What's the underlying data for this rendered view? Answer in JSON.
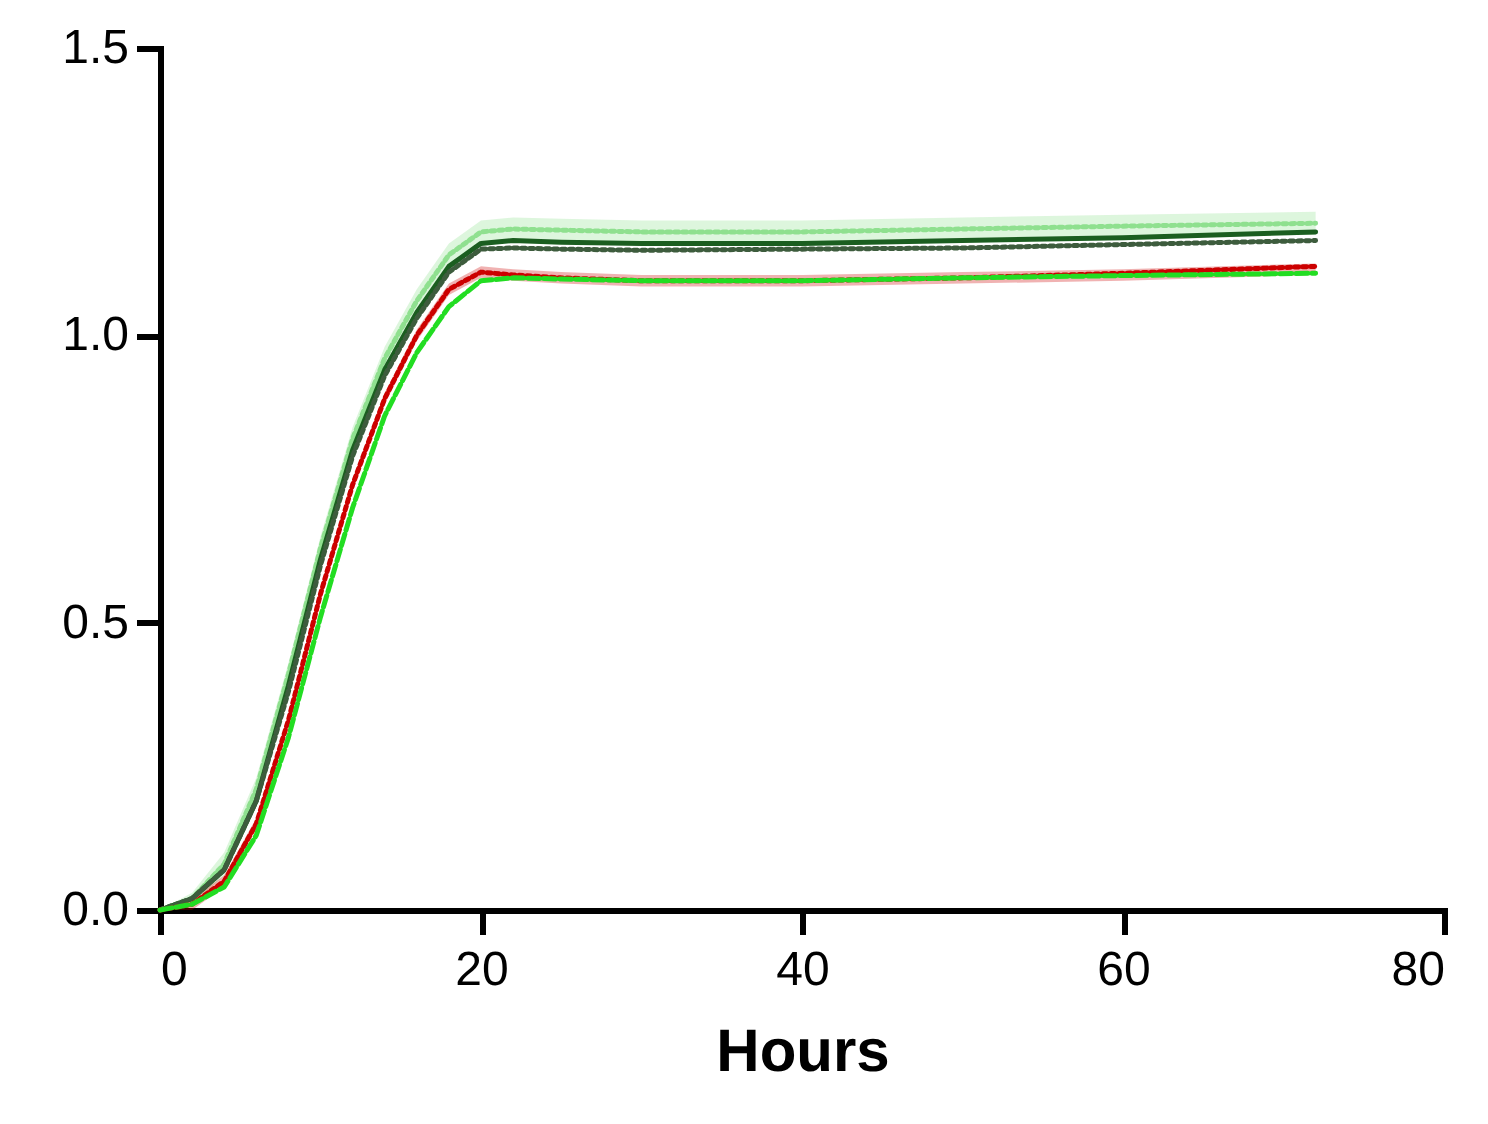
{
  "chart_data": {
    "type": "line",
    "xlabel": "Hours",
    "x": [
      0,
      2,
      4,
      6,
      8,
      10,
      12,
      14,
      16,
      18,
      20,
      22,
      25,
      30,
      40,
      50,
      60,
      72
    ],
    "xlim": [
      0,
      80
    ],
    "xticks": [
      0,
      20,
      40,
      60,
      80
    ],
    "ylim": [
      0,
      1.5
    ],
    "yticks": [
      {
        "value": 0,
        "label": "0.0"
      },
      0.5,
      {
        "value": 1,
        "label": "1.0"
      },
      1.5
    ],
    "grid": false,
    "series": [
      {
        "color": "#8fe08f",
        "line_style": "dotted",
        "values": [
          0,
          0.02,
          0.08,
          0.21,
          0.41,
          0.63,
          0.82,
          0.96,
          1.06,
          1.14,
          1.18,
          1.185,
          1.183,
          1.18,
          1.18,
          1.185,
          1.19,
          1.195
        ],
        "lower": [
          0,
          0.01,
          0.06,
          0.19,
          0.39,
          0.61,
          0.8,
          0.94,
          1.04,
          1.12,
          1.16,
          1.165,
          1.163,
          1.16,
          1.16,
          1.165,
          1.17,
          1.175
        ],
        "upper": [
          0,
          0.03,
          0.1,
          0.23,
          0.43,
          0.65,
          0.84,
          0.98,
          1.08,
          1.16,
          1.2,
          1.205,
          1.203,
          1.2,
          1.2,
          1.205,
          1.21,
          1.215
        ]
      },
      {
        "color": "#1b5e20",
        "line_style": "solid",
        "values": [
          0,
          0.02,
          0.07,
          0.19,
          0.39,
          0.61,
          0.8,
          0.94,
          1.04,
          1.12,
          1.16,
          1.165,
          1.162,
          1.16,
          1.16,
          1.165,
          1.17,
          1.18
        ]
      },
      {
        "color": "#3d5c3d",
        "line_style": "dotted",
        "values": [
          0,
          0.02,
          0.07,
          0.19,
          0.38,
          0.6,
          0.79,
          0.93,
          1.03,
          1.11,
          1.15,
          1.152,
          1.15,
          1.148,
          1.15,
          1.152,
          1.158,
          1.165
        ]
      },
      {
        "color": "#cc0000",
        "line_style": "dotted",
        "values": [
          0,
          0.01,
          0.05,
          0.15,
          0.33,
          0.55,
          0.74,
          0.89,
          1,
          1.08,
          1.11,
          1.105,
          1.1,
          1.095,
          1.095,
          1.1,
          1.108,
          1.12
        ],
        "lower": [
          0,
          0,
          0.04,
          0.14,
          0.32,
          0.54,
          0.73,
          0.88,
          0.99,
          1.07,
          1.1,
          1.095,
          1.09,
          1.085,
          1.085,
          1.09,
          1.095,
          1.105
        ],
        "upper": [
          0,
          0.02,
          0.06,
          0.16,
          0.34,
          0.56,
          0.75,
          0.9,
          1.01,
          1.09,
          1.12,
          1.115,
          1.11,
          1.105,
          1.105,
          1.11,
          1.115,
          1.125
        ]
      },
      {
        "color": "#22dd22",
        "line_style": "dashed",
        "values": [
          0,
          0.01,
          0.04,
          0.13,
          0.3,
          0.51,
          0.7,
          0.86,
          0.97,
          1.05,
          1.095,
          1.1,
          1.098,
          1.095,
          1.095,
          1.1,
          1.104,
          1.108
        ]
      }
    ]
  }
}
